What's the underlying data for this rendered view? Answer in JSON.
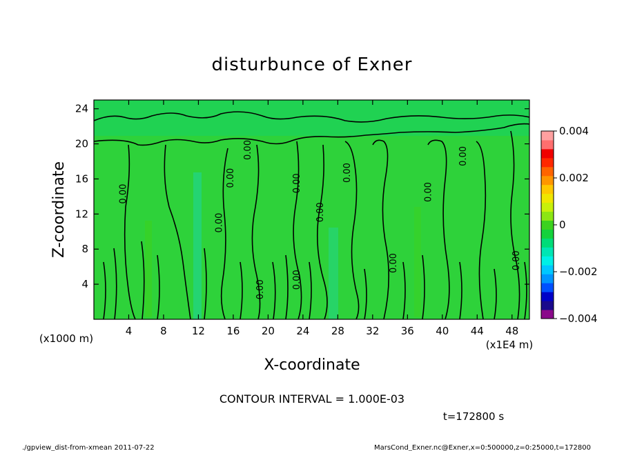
{
  "chart_data": {
    "type": "heatmap",
    "title": "disturbunce of Exner",
    "xlabel": "X-coordinate",
    "ylabel": "Z-coordinate",
    "x_unit_left": "(x1000 m)",
    "x_unit_right": "(x1E4 m)",
    "xlim": [
      0,
      50
    ],
    "ylim": [
      0,
      25
    ],
    "x_ticks": [
      4,
      8,
      12,
      16,
      20,
      24,
      28,
      32,
      36,
      40,
      44,
      48
    ],
    "y_ticks": [
      4,
      8,
      12,
      16,
      20,
      24
    ],
    "colorbar": {
      "range": [
        -0.004,
        0.004
      ],
      "tick_values": [
        0.004,
        0.002,
        0,
        -0.002,
        -0.004
      ],
      "tick_labels": [
        "0.004",
        "0.002",
        "0",
        "−0.002",
        "−0.004"
      ],
      "colors": [
        "#8a0a8a",
        "#1a0a8c",
        "#0000c8",
        "#0050ff",
        "#0096ff",
        "#00c8ff",
        "#00f0e6",
        "#00e6b4",
        "#00dc78",
        "#14d23c",
        "#3cd21e",
        "#8ce614",
        "#c8f00a",
        "#f0e600",
        "#ffc800",
        "#ff9600",
        "#ff6400",
        "#ff2800",
        "#f00000",
        "#ff6e6e",
        "#ffa0a0"
      ]
    },
    "contour_labels": [
      {
        "x": 3.7,
        "z": 14.3,
        "text": "0.00"
      },
      {
        "x": 14.7,
        "z": 11.0,
        "text": "0.00"
      },
      {
        "x": 16.0,
        "z": 16.1,
        "text": "0.00"
      },
      {
        "x": 18.0,
        "z": 19.3,
        "text": "0.00"
      },
      {
        "x": 19.4,
        "z": 3.4,
        "text": "0.00"
      },
      {
        "x": 23.6,
        "z": 15.5,
        "text": "0.00"
      },
      {
        "x": 23.6,
        "z": 4.5,
        "text": "0.00"
      },
      {
        "x": 26.3,
        "z": 12.2,
        "text": "0.00"
      },
      {
        "x": 29.4,
        "z": 16.7,
        "text": "0.00"
      },
      {
        "x": 34.7,
        "z": 6.4,
        "text": "0.00"
      },
      {
        "x": 38.7,
        "z": 14.5,
        "text": "0.00"
      },
      {
        "x": 42.7,
        "z": 18.6,
        "text": "0.00"
      },
      {
        "x": 48.8,
        "z": 6.7,
        "text": "0.00"
      }
    ],
    "contour_interval_text": "CONTOUR INTERVAL = 1.000E-03",
    "time_text": "t=172800 s"
  },
  "footer": {
    "left": "./gpview_dist-from-xmean  2011-07-22",
    "right": "MarsCond_Exner.nc@Exner,x=0:500000,z=0:25000,t=172800"
  }
}
